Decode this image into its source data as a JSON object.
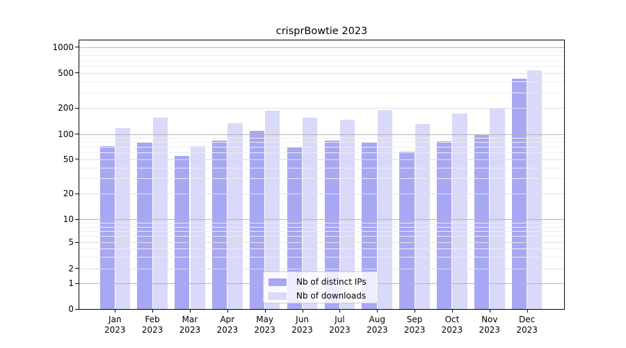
{
  "chart_data": {
    "type": "bar",
    "title": "crisprBowtie 2023",
    "categories": [
      "Jan 2023",
      "Feb 2023",
      "Mar 2023",
      "Apr 2023",
      "May 2023",
      "Jun 2023",
      "Jul 2023",
      "Aug 2023",
      "Sep 2023",
      "Oct 2023",
      "Nov 2023",
      "Dec 2023"
    ],
    "series": [
      {
        "name": "Nb of distinct IPs",
        "color": "#a7a7f3",
        "values": [
          71,
          79,
          55,
          84,
          109,
          70,
          84,
          80,
          61,
          82,
          100,
          425
        ]
      },
      {
        "name": "Nb of downloads",
        "color": "#d9d9f9",
        "values": [
          116,
          153,
          71,
          133,
          185,
          155,
          147,
          190,
          130,
          174,
          196,
          535
        ]
      }
    ],
    "xlabel": "",
    "ylabel": "",
    "yscale": "log above 1, linear 0-1 (0 tick shown)",
    "ylim": [
      0,
      1180
    ],
    "yticks": [
      0,
      1,
      2,
      5,
      10,
      20,
      50,
      100,
      200,
      500,
      1000
    ],
    "grid": true,
    "legend_position": "inside lower center"
  }
}
